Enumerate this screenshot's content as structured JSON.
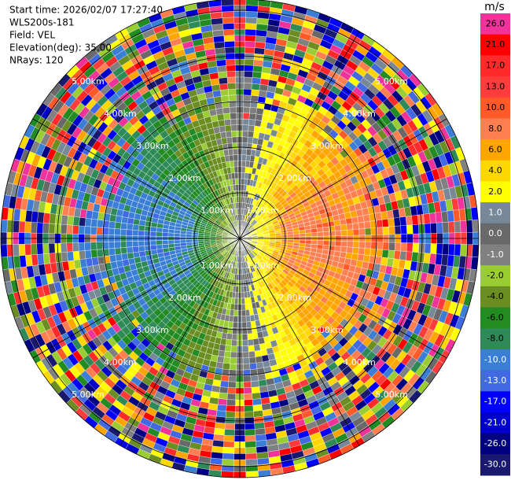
{
  "chart_data": {
    "type": "ppi",
    "info": [
      "Start time: 2026/02/07 17:27:40",
      "WLS200s-181",
      "Field: VEL",
      "Elevation(deg): 35.00",
      "NRays: 120"
    ],
    "rings": [
      "1.00km",
      "2.00km",
      "3.00km",
      "4.00km",
      "5.00km"
    ],
    "colorbar": {
      "label": "m/s",
      "ticks": [
        {
          "value": 26,
          "label": "26.0"
        },
        {
          "value": 21,
          "label": "21.0"
        },
        {
          "value": 17,
          "label": "17.0"
        },
        {
          "value": 13,
          "label": "13.0"
        },
        {
          "value": 10,
          "label": "10.0"
        },
        {
          "value": 8,
          "label": "8.0"
        },
        {
          "value": 6,
          "label": "6.0"
        },
        {
          "value": 4,
          "label": "4.0"
        },
        {
          "value": 2,
          "label": "2.0"
        },
        {
          "value": 1,
          "label": "1.0"
        },
        {
          "value": 0,
          "label": "0.0"
        },
        {
          "value": -1,
          "label": "-1.0"
        },
        {
          "value": -2,
          "label": "-2.0"
        },
        {
          "value": -4,
          "label": "-4.0"
        },
        {
          "value": -6,
          "label": "-6.0"
        },
        {
          "value": -8,
          "label": "-8.0"
        },
        {
          "value": -10,
          "label": "-10.0"
        },
        {
          "value": -13,
          "label": "-13.0"
        },
        {
          "value": -17,
          "label": "-17.0"
        },
        {
          "value": -21,
          "label": "-21.0"
        },
        {
          "value": -26,
          "label": "-26.0"
        },
        {
          "value": -30,
          "label": "-30.0"
        }
      ],
      "colors": [
        "#f0329a",
        "#ff0000",
        "#ff2a2a",
        "#ff3c3c",
        "#ff5a28",
        "#ff7f50",
        "#ffa500",
        "#ffd700",
        "#ffff00",
        "#778899",
        "#696969",
        "#808080",
        "#9acd32",
        "#6b8e23",
        "#228b22",
        "#2e8b57",
        "#3a7fd5",
        "#4169e1",
        "#0000ff",
        "#0000cd",
        "#000080",
        "#191970"
      ]
    }
  }
}
